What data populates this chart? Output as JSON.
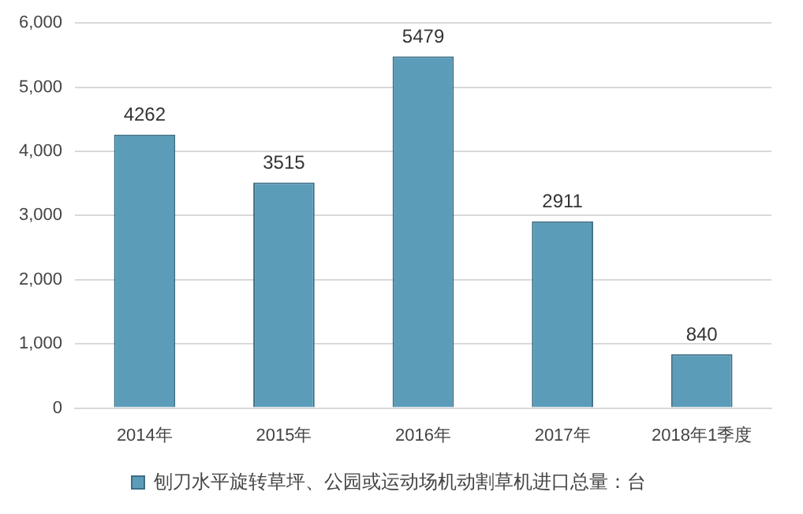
{
  "chart_data": {
    "type": "bar",
    "categories": [
      "2014年",
      "2015年",
      "2016年",
      "2017年",
      "2018年1季度"
    ],
    "series": [
      {
        "name": "刨刀水平旋转草坪、公园或运动场机动割草机进口总量：台",
        "color": "#5b9db9",
        "values": [
          4262,
          3515,
          5479,
          2911,
          840
        ]
      }
    ],
    "ylim": [
      0,
      6000
    ],
    "yticks": [
      0,
      {
        "value": 1000,
        "label": "1,000"
      },
      {
        "value": 2000,
        "label": "2,000"
      },
      {
        "value": 3000,
        "label": "3,000"
      },
      {
        "value": 4000,
        "label": "4,000"
      },
      {
        "value": 5000,
        "label": "5,000"
      },
      {
        "value": 6000,
        "label": "6,000"
      }
    ],
    "grid": "y",
    "legend": "bottom",
    "data_labels": true
  }
}
